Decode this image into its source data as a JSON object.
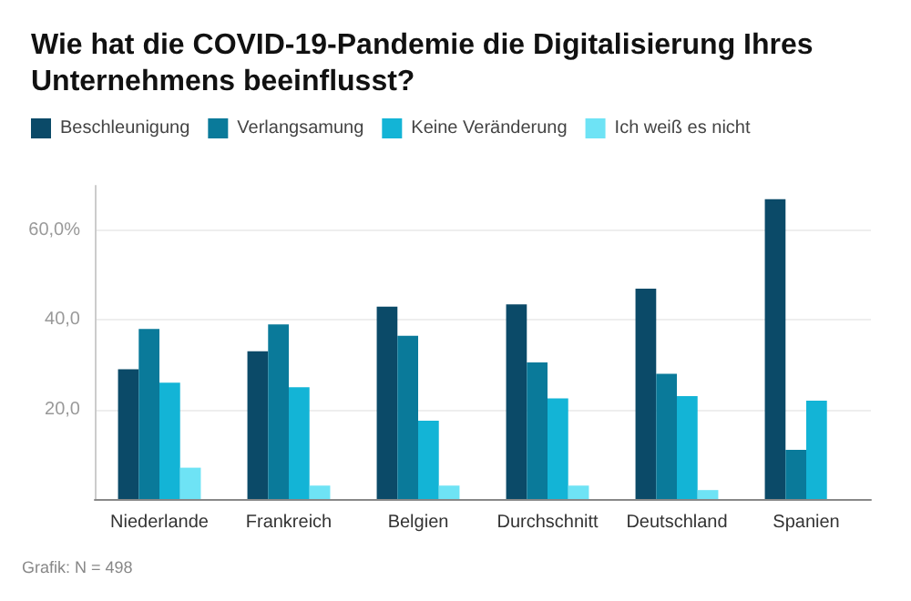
{
  "chart_data": {
    "type": "bar",
    "title": "Wie hat die COVID-19-Pandemie die Digitalisierung Ihres Unternehmens beeinflusst?",
    "categories": [
      "Niederlande",
      "Frankreich",
      "Belgien",
      "Durchschnitt",
      "Deutschland",
      "Spanien"
    ],
    "series": [
      {
        "name": "Beschleunigung",
        "color": "#0b4a68",
        "values": [
          29,
          33,
          43,
          43.5,
          47,
          67
        ]
      },
      {
        "name": "Verlangsamung",
        "color": "#0a7a9a",
        "values": [
          38,
          39,
          36.5,
          30.5,
          28,
          11
        ]
      },
      {
        "name": "Keine Veränderung",
        "color": "#13b4d6",
        "values": [
          26,
          25,
          17.5,
          22.5,
          23,
          22
        ]
      },
      {
        "name": "Ich weiß es nicht",
        "color": "#6ee3f5",
        "values": [
          7,
          3,
          3,
          3,
          2,
          null
        ]
      }
    ],
    "ylim": [
      0,
      70
    ],
    "yticks": [
      {
        "value": 20,
        "label": "20,0"
      },
      {
        "value": 40,
        "label": "40,0"
      },
      {
        "value": 60,
        "label": "60,0%"
      }
    ],
    "grid": "y",
    "legend": "top left",
    "annotations": [
      "Grafik: N = 498"
    ]
  }
}
